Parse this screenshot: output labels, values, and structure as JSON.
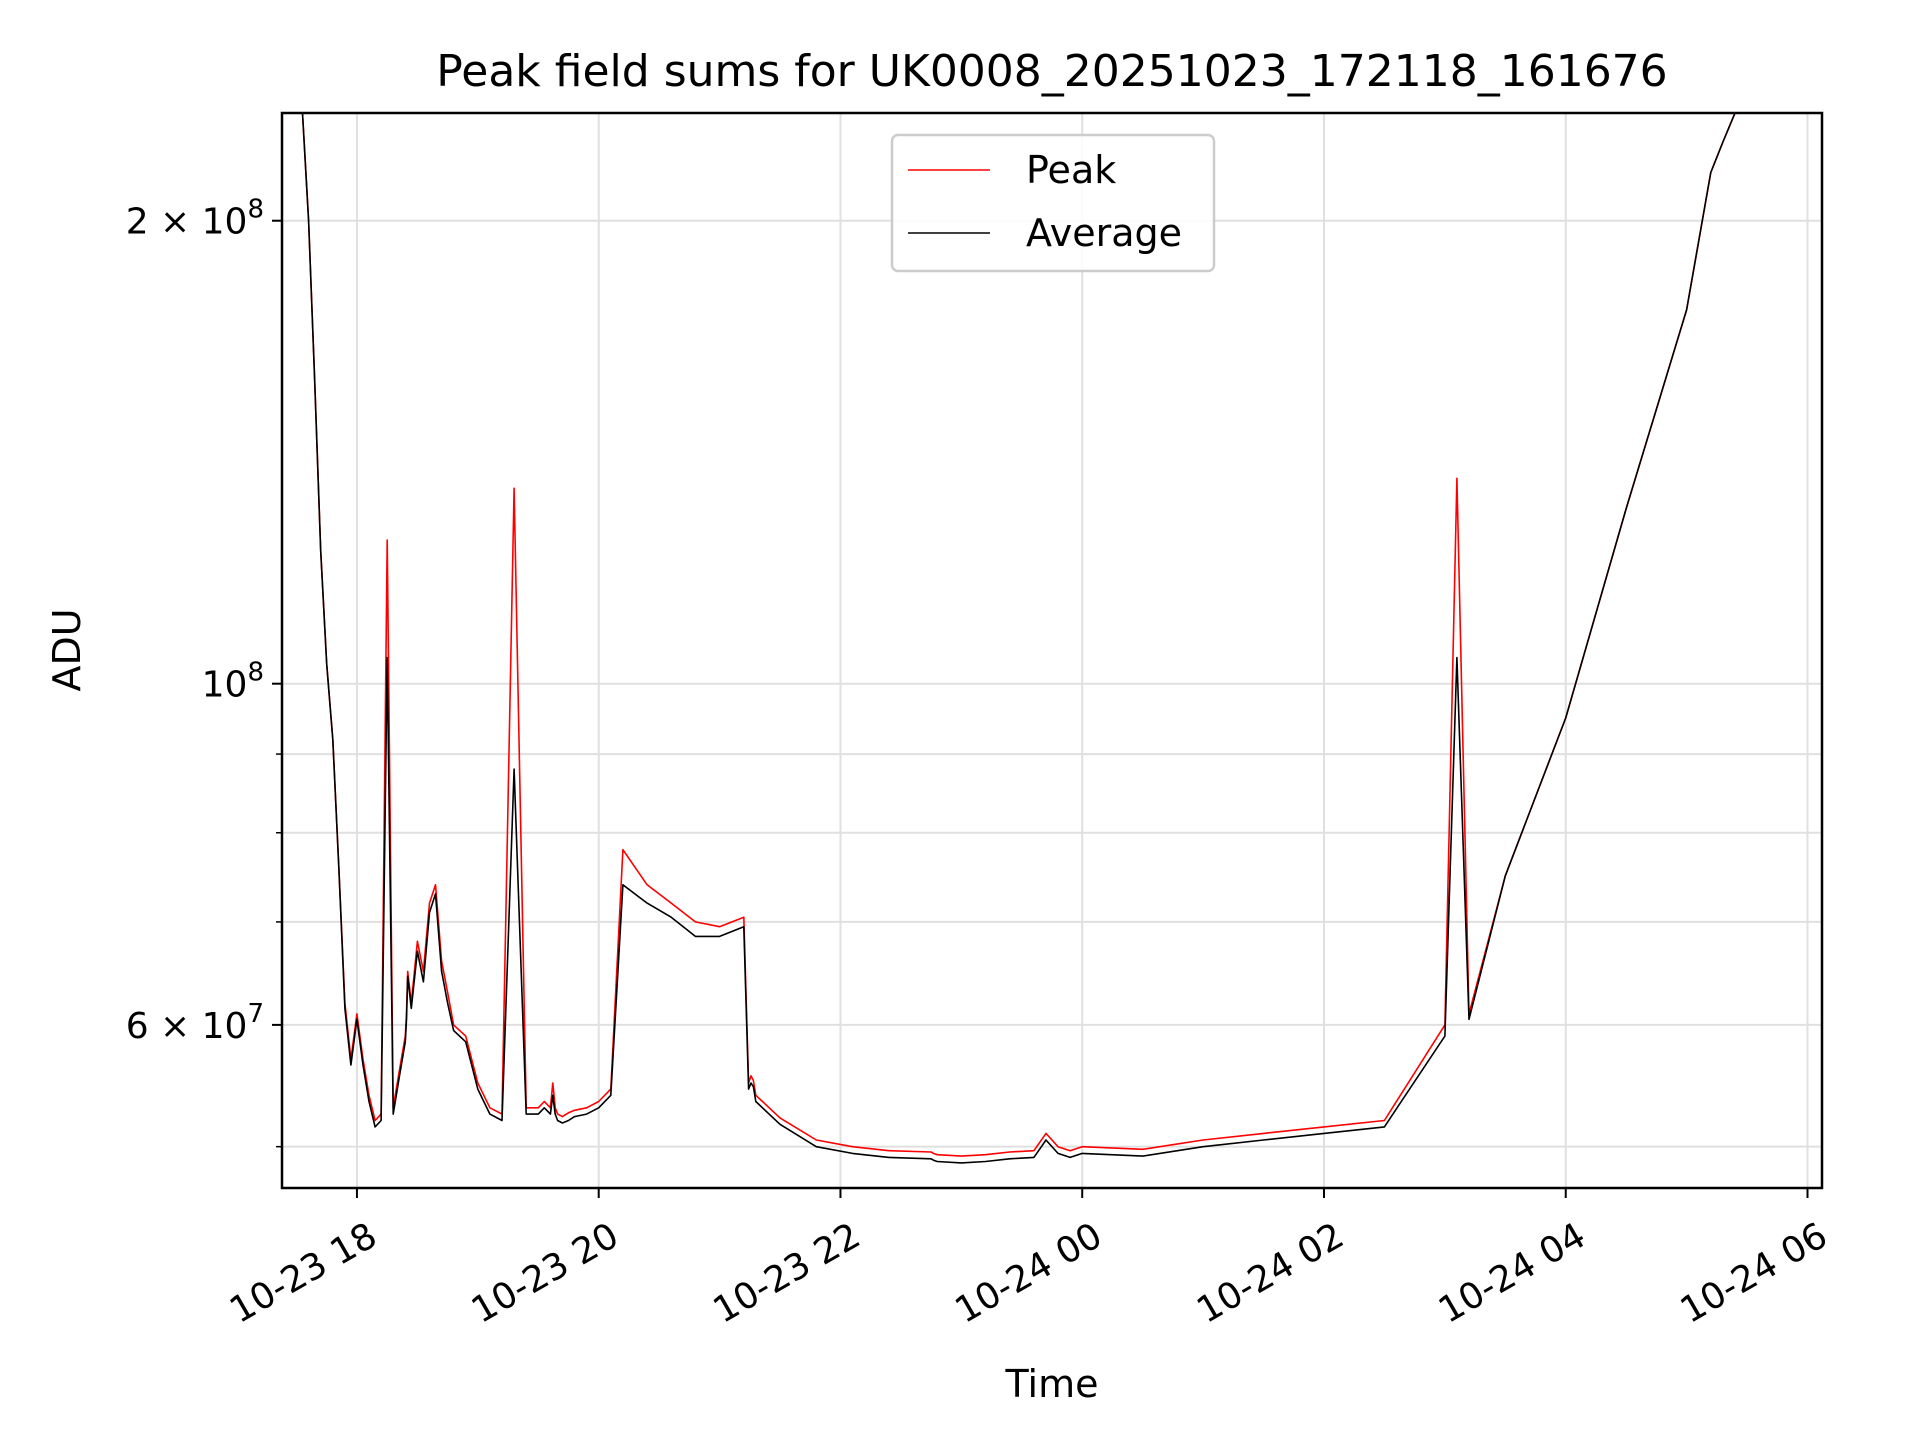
{
  "colors": {
    "peak": "#ff0000",
    "average": "#000000",
    "grid": "#e0e0e0"
  },
  "chart_data": {
    "type": "line",
    "title": "Peak field sums for UK0008_20251023_172118_161676",
    "xlabel": "Time",
    "ylabel": "ADU",
    "x_unit": "hours since 2025-10-23 00:00",
    "xlim": [
      17.38,
      30.12
    ],
    "ylim": [
      47000000,
      235000000
    ],
    "yscale": "log",
    "grid": true,
    "legend_location": "upper center",
    "x_ticks": [
      {
        "value": 18,
        "label": "10-23 18"
      },
      {
        "value": 20,
        "label": "10-23 20"
      },
      {
        "value": 22,
        "label": "10-23 22"
      },
      {
        "value": 24,
        "label": "10-24 00"
      },
      {
        "value": 26,
        "label": "10-24 02"
      },
      {
        "value": 28,
        "label": "10-24 04"
      },
      {
        "value": 30,
        "label": "10-24 06"
      }
    ],
    "y_major_ticks": [
      {
        "value": 100000000,
        "base": "10",
        "exp": "8"
      },
      {
        "value": 200000000,
        "base": "2 × 10",
        "exp": "8"
      },
      {
        "value": 60000000,
        "base": "6 × 10",
        "exp": "7"
      }
    ],
    "y_minor_ticks": [
      50000000,
      70000000,
      80000000,
      90000000
    ],
    "series": [
      {
        "name": "Peak",
        "color": "#ff0000",
        "x": [
          17.38,
          17.55,
          17.6,
          17.65,
          17.7,
          17.75,
          17.8,
          17.85,
          17.9,
          17.95,
          18.0,
          18.05,
          18.1,
          18.15,
          18.2,
          18.25,
          18.3,
          18.35,
          18.4,
          18.41,
          18.42,
          18.45,
          18.5,
          18.55,
          18.6,
          18.65,
          18.7,
          18.75,
          18.8,
          18.9,
          19.0,
          19.1,
          19.2,
          19.3,
          19.4,
          19.5,
          19.55,
          19.6,
          19.62,
          19.64,
          19.66,
          19.7,
          19.75,
          19.8,
          19.9,
          20.0,
          20.1,
          20.2,
          20.4,
          20.6,
          20.8,
          21.0,
          21.2,
          21.24,
          21.26,
          21.28,
          21.3,
          21.5,
          21.8,
          22.1,
          22.4,
          22.75,
          22.77,
          22.8,
          23.0,
          23.2,
          23.4,
          23.6,
          23.7,
          23.8,
          23.9,
          24.0,
          24.5,
          25.0,
          25.5,
          26.0,
          26.5,
          27.0,
          27.1,
          27.2,
          27.5,
          28.0,
          28.5,
          29.0,
          29.2,
          29.3,
          29.4,
          29.5,
          29.52,
          29.55,
          29.6,
          29.7,
          29.8,
          29.9,
          30.0,
          30.05,
          30.1,
          30.12
        ],
        "y": [
          235000000,
          235000000,
          200000000,
          158000000,
          122000000,
          103000000,
          92000000,
          76000000,
          62000000,
          57000000,
          61000000,
          57000000,
          54000000,
          52000000,
          52500000,
          124000000,
          53000000,
          56000000,
          59000000,
          61000000,
          65000000,
          62000000,
          68000000,
          65000000,
          72000000,
          74000000,
          66000000,
          63000000,
          60000000,
          59000000,
          55000000,
          53000000,
          52500000,
          134000000,
          53000000,
          53000000,
          53500000,
          53000000,
          55000000,
          53000000,
          52500000,
          52300000,
          52600000,
          52800000,
          53000000,
          53500000,
          54500000,
          78000000,
          74000000,
          72000000,
          70000000,
          69500000,
          70500000,
          55000000,
          55600000,
          55200000,
          54000000,
          52200000,
          50500000,
          50000000,
          49700000,
          49600000,
          49500000,
          49400000,
          49300000,
          49400000,
          49600000,
          49700000,
          51000000,
          50000000,
          49700000,
          50000000,
          49800000,
          50500000,
          51000000,
          51500000,
          52000000,
          60000000,
          136000000,
          61000000,
          75000000,
          95000000,
          130000000,
          175000000,
          215000000,
          225000000,
          235000000,
          235000000,
          235000000,
          235000000,
          235000000,
          235000000,
          235000000,
          235000000,
          235000000,
          235000000,
          235000000,
          235000000
        ]
      },
      {
        "name": "Average",
        "color": "#000000",
        "x": [
          17.38,
          17.55,
          17.6,
          17.65,
          17.7,
          17.75,
          17.8,
          17.85,
          17.9,
          17.95,
          18.0,
          18.05,
          18.1,
          18.15,
          18.2,
          18.25,
          18.3,
          18.35,
          18.4,
          18.41,
          18.42,
          18.45,
          18.5,
          18.55,
          18.6,
          18.65,
          18.7,
          18.75,
          18.8,
          18.9,
          19.0,
          19.1,
          19.2,
          19.3,
          19.4,
          19.5,
          19.55,
          19.6,
          19.62,
          19.64,
          19.66,
          19.7,
          19.75,
          19.8,
          19.9,
          20.0,
          20.1,
          20.2,
          20.4,
          20.6,
          20.8,
          21.0,
          21.2,
          21.24,
          21.26,
          21.28,
          21.3,
          21.5,
          21.8,
          22.1,
          22.4,
          22.75,
          22.77,
          22.8,
          23.0,
          23.2,
          23.4,
          23.6,
          23.7,
          23.8,
          23.9,
          24.0,
          24.5,
          25.0,
          25.5,
          26.0,
          26.5,
          27.0,
          27.1,
          27.2,
          27.5,
          28.0,
          28.5,
          29.0,
          29.2,
          29.3,
          29.4,
          29.5,
          29.52,
          29.55,
          29.6,
          29.7,
          29.8,
          29.9,
          30.0,
          30.05,
          30.1,
          30.12
        ],
        "y": [
          235000000,
          235000000,
          200000000,
          158000000,
          122000000,
          103000000,
          92000000,
          76000000,
          61500000,
          56500000,
          60500000,
          56500000,
          53500000,
          51500000,
          52000000,
          104000000,
          52500000,
          55500000,
          58500000,
          60500000,
          64500000,
          61500000,
          67000000,
          64000000,
          71000000,
          73000000,
          65000000,
          62000000,
          59500000,
          58500000,
          54500000,
          52500000,
          52000000,
          88000000,
          52500000,
          52500000,
          53000000,
          52500000,
          54000000,
          52500000,
          52000000,
          51800000,
          52000000,
          52300000,
          52500000,
          53000000,
          54000000,
          74000000,
          72000000,
          70500000,
          68500000,
          68500000,
          69500000,
          54500000,
          55000000,
          54700000,
          53500000,
          51700000,
          50000000,
          49500000,
          49200000,
          49100000,
          49000000,
          48900000,
          48800000,
          48900000,
          49100000,
          49200000,
          50500000,
          49500000,
          49200000,
          49500000,
          49300000,
          50000000,
          50500000,
          51000000,
          51500000,
          59000000,
          104000000,
          60500000,
          75000000,
          95000000,
          130000000,
          175000000,
          215000000,
          225000000,
          235000000,
          235000000,
          235000000,
          235000000,
          235000000,
          235000000,
          235000000,
          235000000,
          235000000,
          235000000,
          235000000,
          235000000
        ]
      }
    ]
  }
}
